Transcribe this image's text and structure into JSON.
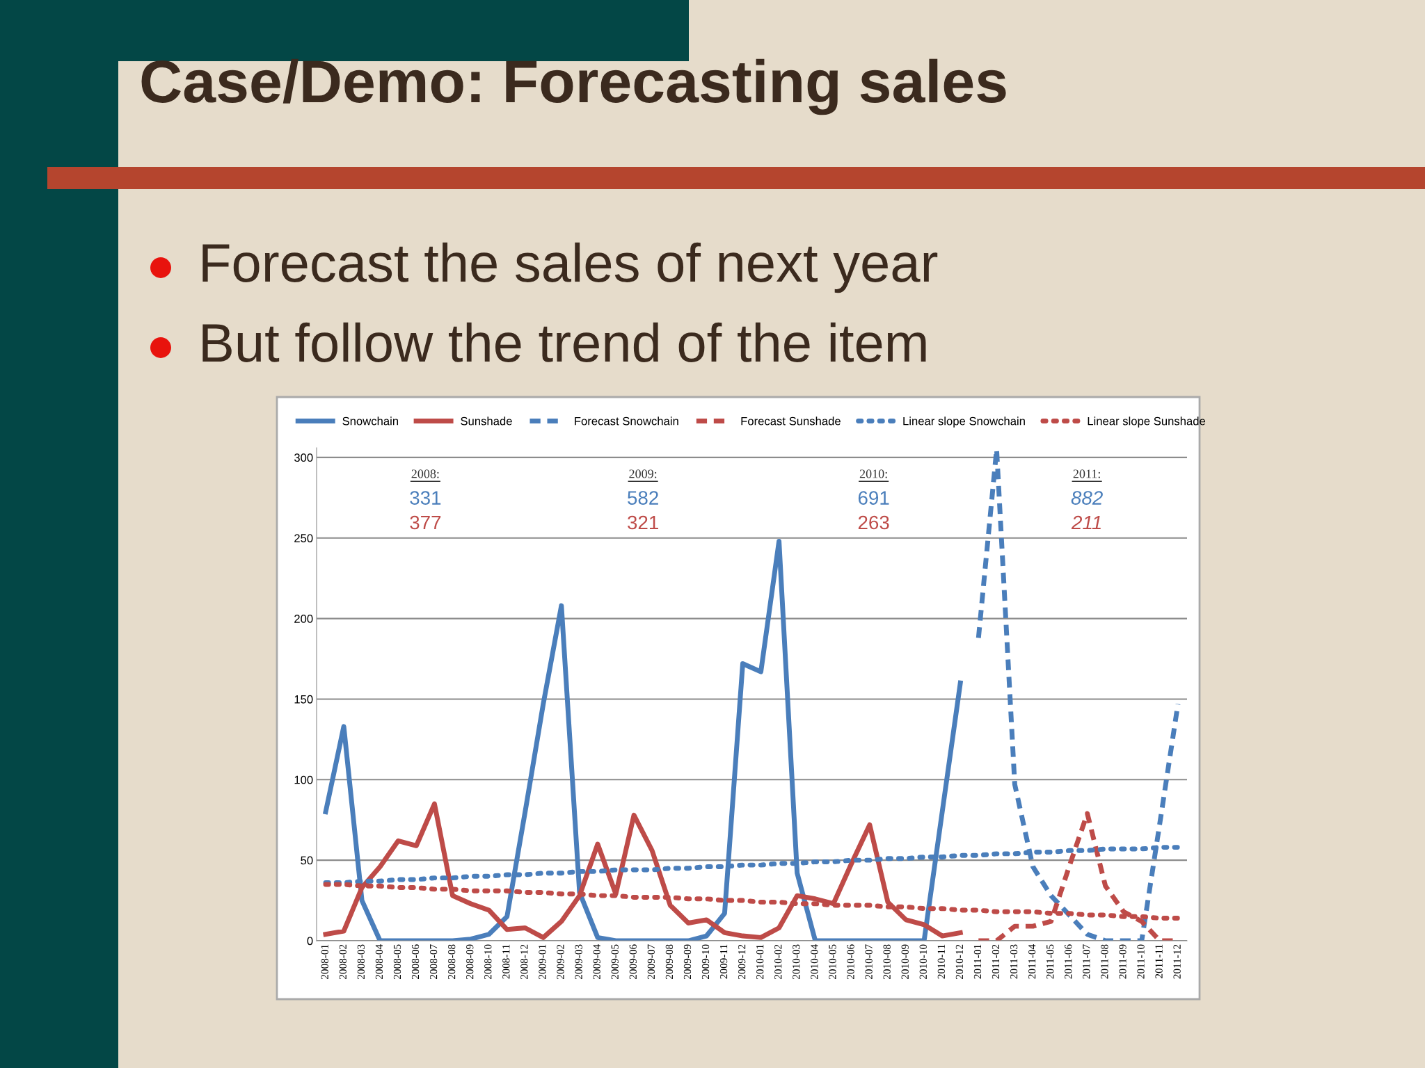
{
  "chart_data": {
    "type": "line",
    "title": "Case/Demo: Forecasting sales",
    "subtitle": "Forecast the sales of next year\nBut follow the trend of the item",
    "categories": [
      "2008-01",
      "2008-02",
      "2008-03",
      "2008-04",
      "2008-05",
      "2008-06",
      "2008-07",
      "2008-08",
      "2008-09",
      "2008-10",
      "2008-11",
      "2008-12",
      "2009-01",
      "2009-02",
      "2009-03",
      "2009-04",
      "2009-05",
      "2009-06",
      "2009-07",
      "2009-08",
      "2009-09",
      "2009-10",
      "2009-11",
      "2009-12",
      "2010-01",
      "2010-02",
      "2010-03",
      "2010-04",
      "2010-05",
      "2010-06",
      "2010-07",
      "2010-08",
      "2010-09",
      "2010-10",
      "2010-11",
      "2010-12",
      "2011-01",
      "2011-02",
      "2011-03",
      "2011-04",
      "2011-05",
      "2011-06",
      "2011-07",
      "2011-08",
      "2011-09",
      "2011-10",
      "2011-11",
      "2011-12"
    ],
    "series": [
      {
        "name": "Snowchain",
        "color": "#4a7ebb",
        "line_style": "solid",
        "values": [
          80,
          133,
          25,
          0,
          0,
          0,
          0,
          0,
          1,
          4,
          15,
          80,
          147,
          208,
          30,
          2,
          0,
          0,
          0,
          0,
          0,
          3,
          17,
          172,
          167,
          248,
          42,
          0,
          0,
          0,
          0,
          0,
          0,
          0,
          80,
          160,
          null,
          null,
          null,
          null,
          null,
          null,
          null,
          null,
          null,
          null,
          null,
          null
        ]
      },
      {
        "name": "Sunshade",
        "color": "#be4b48",
        "line_style": "solid",
        "values": [
          4,
          6,
          33,
          46,
          62,
          59,
          85,
          28,
          23,
          19,
          7,
          8,
          2,
          12,
          28,
          60,
          29,
          78,
          56,
          22,
          11,
          13,
          5,
          3,
          2,
          8,
          28,
          26,
          23,
          48,
          72,
          24,
          13,
          10,
          3,
          5,
          null,
          null,
          null,
          null,
          null,
          null,
          null,
          null,
          null,
          null,
          null,
          null
        ]
      },
      {
        "name": "Forecast Snowchain",
        "color": "#4a7ebb",
        "line_style": "dashed",
        "values": [
          null,
          null,
          null,
          null,
          null,
          null,
          null,
          null,
          null,
          null,
          null,
          null,
          null,
          null,
          null,
          null,
          null,
          null,
          null,
          null,
          null,
          null,
          null,
          null,
          null,
          null,
          null,
          null,
          null,
          null,
          null,
          null,
          null,
          null,
          null,
          null,
          188,
          305,
          97,
          46,
          28,
          16,
          4,
          0,
          0,
          0,
          73,
          147
        ]
      },
      {
        "name": "Forecast Sunshade",
        "color": "#be4b48",
        "line_style": "dashed",
        "values": [
          null,
          null,
          null,
          null,
          null,
          null,
          null,
          null,
          null,
          null,
          null,
          null,
          null,
          null,
          null,
          null,
          null,
          null,
          null,
          null,
          null,
          null,
          null,
          null,
          null,
          null,
          null,
          null,
          null,
          null,
          null,
          null,
          null,
          null,
          null,
          null,
          0,
          0,
          9,
          9,
          12,
          46,
          79,
          34,
          18,
          12,
          0,
          0
        ]
      },
      {
        "name": "Linear slope Snowchain",
        "color": "#4a7ebb",
        "line_style": "dotted",
        "values": [
          36,
          36,
          37,
          37,
          38,
          38,
          39,
          39,
          40,
          40,
          41,
          41,
          42,
          42,
          43,
          43,
          44,
          44,
          44,
          45,
          45,
          46,
          46,
          47,
          47,
          48,
          48,
          49,
          49,
          50,
          50,
          51,
          51,
          52,
          52,
          53,
          53,
          54,
          54,
          55,
          55,
          56,
          56,
          57,
          57,
          57,
          58,
          58
        ]
      },
      {
        "name": "Linear slope Sunshade",
        "color": "#be4b48",
        "line_style": "dotted",
        "values": [
          35,
          35,
          34,
          34,
          33,
          33,
          32,
          32,
          31,
          31,
          31,
          30,
          30,
          29,
          29,
          28,
          28,
          27,
          27,
          27,
          26,
          26,
          25,
          25,
          24,
          24,
          23,
          23,
          22,
          22,
          22,
          21,
          21,
          20,
          20,
          19,
          19,
          18,
          18,
          18,
          17,
          17,
          16,
          16,
          15,
          15,
          14,
          14
        ]
      }
    ],
    "ylim": [
      0,
      306
    ],
    "yticks": [
      0,
      50,
      100,
      150,
      200,
      250,
      300
    ],
    "grid": "y",
    "legend": "top",
    "marker": "none",
    "annotations": [
      "2008:",
      "331",
      "377",
      "2009:",
      "582",
      "321",
      "2010:",
      "691",
      "263",
      "2011:",
      "882",
      "211"
    ]
  }
}
